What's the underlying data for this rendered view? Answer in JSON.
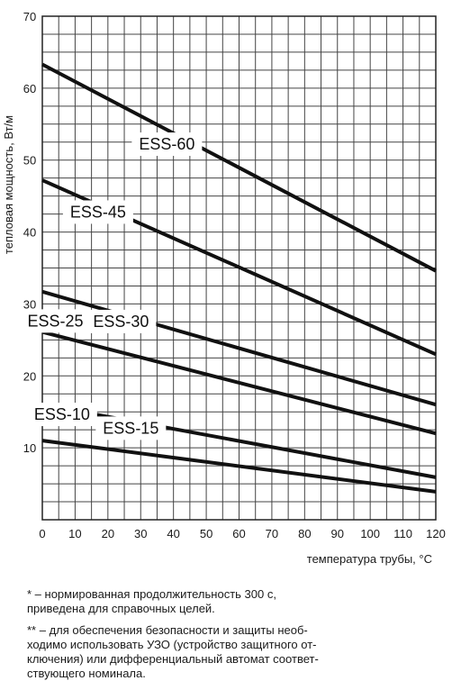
{
  "chart_data": {
    "type": "line",
    "title": "",
    "xlabel": "температура трубы, °C",
    "ylabel": "тепловая мощность, Вт/м",
    "xlim": [
      0,
      120
    ],
    "ylim": [
      0,
      70
    ],
    "x_ticks": [
      "0",
      "10",
      "20",
      "30",
      "40",
      "50",
      "60",
      "70",
      "80",
      "90",
      "100",
      "110",
      "120"
    ],
    "y_ticks": [
      "10",
      "20",
      "30",
      "40",
      "50",
      "60",
      "70"
    ],
    "grid": true,
    "series": [
      {
        "name": "ESS-60",
        "x": [
          0,
          120
        ],
        "values": [
          63.3,
          34.6
        ]
      },
      {
        "name": "ESS-45",
        "x": [
          0,
          120
        ],
        "values": [
          47.2,
          23.0
        ]
      },
      {
        "name": "ESS-30",
        "x": [
          0,
          120
        ],
        "values": [
          31.7,
          16.0
        ]
      },
      {
        "name": "ESS-25",
        "x": [
          0,
          120
        ],
        "values": [
          26.1,
          12.0
        ]
      },
      {
        "name": "ESS-15",
        "x": [
          0,
          120
        ],
        "values": [
          16.0,
          5.9
        ]
      },
      {
        "name": "ESS-10",
        "x": [
          0,
          120
        ],
        "values": [
          11.0,
          3.9
        ]
      }
    ]
  },
  "notes": [
    "* – нормированная продолжительность 300 с,\nприведена для справочных целей.",
    "** – для обеспечения безопасности и защиты необ-\nходимо использовать УЗО (устройство защитного от-\nключения) или дифференциальный автомат соответ-\nствующего номинала."
  ]
}
